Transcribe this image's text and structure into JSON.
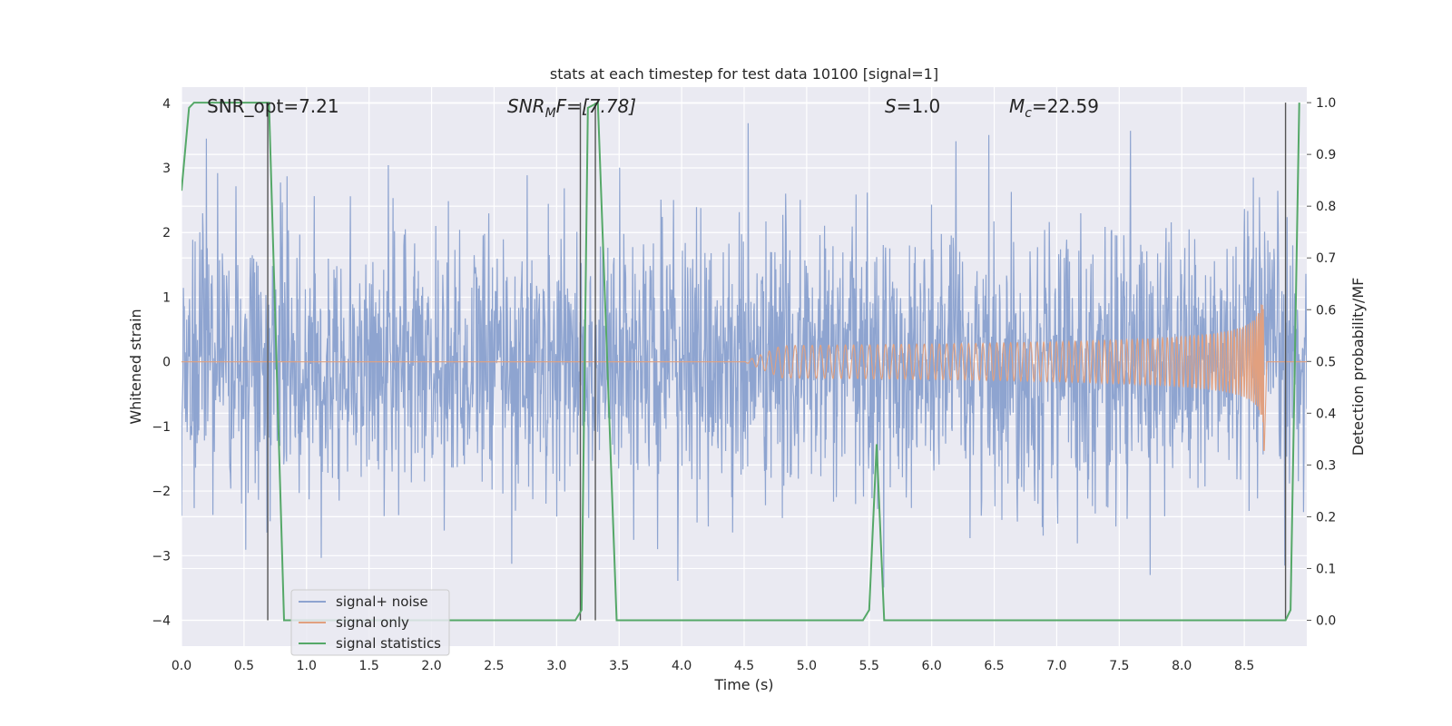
{
  "chart_data": {
    "type": "line",
    "title": "stats at each timestep for test data 10100 [signal=1]",
    "xlabel": "Time (s)",
    "ylabel": "Whitened strain",
    "ylabel_right": "Detection probability/MF",
    "xlim": [
      0.0,
      9.0
    ],
    "ylim": [
      -4.4,
      4.25
    ],
    "ylim_right": [
      -0.05,
      1.03
    ],
    "x_ticks": [
      "0.0",
      "0.5",
      "1.0",
      "1.5",
      "2.0",
      "2.5",
      "3.0",
      "3.5",
      "4.0",
      "4.5",
      "5.0",
      "5.5",
      "6.0",
      "6.5",
      "7.0",
      "7.5",
      "8.0",
      "8.5"
    ],
    "y_ticks": [
      "−4",
      "−3",
      "−2",
      "−1",
      "0",
      "1",
      "2",
      "3",
      "4"
    ],
    "y_ticks_right": [
      "0.0",
      "0.1",
      "0.2",
      "0.3",
      "0.4",
      "0.5",
      "0.6",
      "0.7",
      "0.8",
      "0.9",
      "1.0"
    ],
    "grid": true,
    "annotations": {
      "snr_opt": "SNR_opt=7.21",
      "snr_mf_name": "SNR",
      "snr_mf_sub": "M",
      "snr_mf_rest": "F=[7.78]",
      "s_name": "S",
      "s_rest": "=1.0",
      "mc_name": "M",
      "mc_sub": "c",
      "mc_rest": "=22.59"
    },
    "legend": {
      "position": "lower-left",
      "entries": [
        {
          "label": "signal+ noise",
          "color": "#8ea4d0"
        },
        {
          "label": "signal only",
          "color": "#e1a07f"
        },
        {
          "label": "signal statistics",
          "color": "#55a868"
        }
      ]
    },
    "series": [
      {
        "name": "signal+ noise",
        "kind": "noise",
        "color": "#8ea4d0",
        "amplitude_range": [
          -3.8,
          3.9
        ],
        "samples": 2400
      },
      {
        "name": "signal only",
        "kind": "chirp",
        "color": "#e1a07f",
        "start_s": 4.5,
        "merger_s": 8.66,
        "peak_amplitude": 1.4
      },
      {
        "name": "signal statistics",
        "axis": "right",
        "color": "#55a868",
        "x": [
          0.0,
          0.06,
          0.1,
          0.15,
          0.7,
          0.82,
          3.15,
          3.2,
          3.25,
          3.33,
          3.48,
          5.45,
          5.5,
          5.56,
          5.62,
          8.83,
          8.87,
          8.94
        ],
        "y": [
          0.83,
          0.99,
          1.0,
          1.0,
          1.0,
          0.0,
          0.0,
          0.02,
          0.99,
          1.0,
          0.0,
          0.0,
          0.02,
          0.34,
          0.0,
          0.0,
          0.02,
          1.0
        ]
      }
    ],
    "vertical_markers_s": [
      0.69,
      3.19,
      3.31,
      8.83
    ]
  }
}
